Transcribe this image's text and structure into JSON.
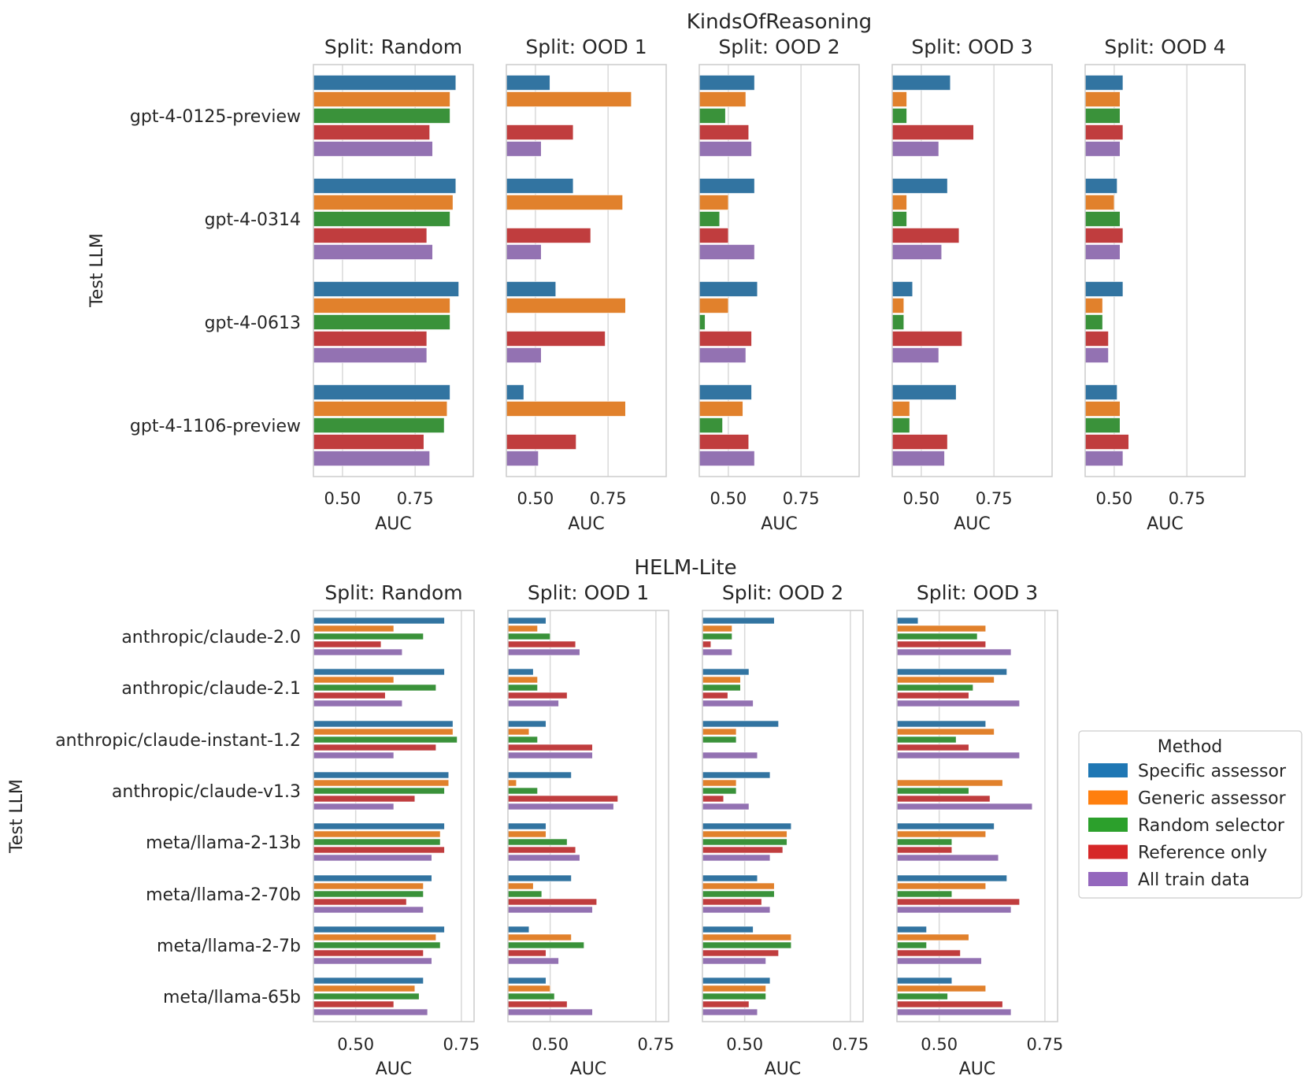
{
  "chart_data": [
    {
      "type": "bar",
      "orientation": "horizontal",
      "title": "KindsOfReasoning",
      "ylabel": "Test LLM",
      "xlabel": "AUC",
      "xticks": [
        0.5,
        0.75
      ],
      "xtick_labels": [
        "0.50",
        "0.75"
      ],
      "xlim": [
        0.4,
        0.95
      ],
      "grid": true,
      "categories": [
        "gpt-4-0125-preview",
        "gpt-4-0314",
        "gpt-4-0613",
        "gpt-4-1106-preview"
      ],
      "series_names": [
        "Specific assessor",
        "Generic assessor",
        "Random selector",
        "Reference only",
        "All train data"
      ],
      "panels": [
        {
          "title": "Split: Random",
          "values": [
            [
              0.89,
              0.87,
              0.87,
              0.8,
              0.81
            ],
            [
              0.89,
              0.88,
              0.87,
              0.79,
              0.81
            ],
            [
              0.9,
              0.87,
              0.87,
              0.79,
              0.79
            ],
            [
              0.87,
              0.86,
              0.85,
              0.78,
              0.8
            ]
          ]
        },
        {
          "title": "Split: OOD 1",
          "values": [
            [
              0.55,
              0.83,
              null,
              0.63,
              0.52
            ],
            [
              0.63,
              0.8,
              null,
              0.69,
              0.52
            ],
            [
              0.57,
              0.81,
              null,
              0.74,
              0.52
            ],
            [
              0.46,
              0.81,
              null,
              0.64,
              0.51
            ]
          ]
        },
        {
          "title": "Split: OOD 2",
          "values": [
            [
              0.59,
              0.56,
              0.49,
              0.57,
              0.58
            ],
            [
              0.59,
              0.5,
              0.47,
              0.5,
              0.59
            ],
            [
              0.6,
              0.5,
              0.42,
              0.58,
              0.56
            ],
            [
              0.58,
              0.55,
              0.48,
              0.57,
              0.59
            ]
          ]
        },
        {
          "title": "Split: OOD 3",
          "values": [
            [
              0.6,
              0.45,
              0.45,
              0.68,
              0.56
            ],
            [
              0.59,
              0.45,
              0.45,
              0.63,
              0.57
            ],
            [
              0.47,
              0.44,
              0.44,
              0.64,
              0.56
            ],
            [
              0.62,
              0.46,
              0.46,
              0.59,
              0.58
            ]
          ]
        },
        {
          "title": "Split: OOD 4",
          "values": [
            [
              0.53,
              0.52,
              0.52,
              0.53,
              0.52
            ],
            [
              0.51,
              0.5,
              0.52,
              0.53,
              0.52
            ],
            [
              0.53,
              0.46,
              0.46,
              0.48,
              0.48
            ],
            [
              0.51,
              0.52,
              0.52,
              0.55,
              0.53
            ]
          ]
        }
      ]
    },
    {
      "type": "bar",
      "orientation": "horizontal",
      "title": "HELM-Lite",
      "ylabel": "Test LLM",
      "xlabel": "AUC",
      "xticks": [
        0.5,
        0.75
      ],
      "xtick_labels": [
        "0.50",
        "0.75"
      ],
      "xlim": [
        0.4,
        0.78
      ],
      "grid": true,
      "categories": [
        "anthropic/claude-2.0",
        "anthropic/claude-2.1",
        "anthropic/claude-instant-1.2",
        "anthropic/claude-v1.3",
        "meta/llama-2-13b",
        "meta/llama-2-70b",
        "meta/llama-2-7b",
        "meta/llama-65b"
      ],
      "series_names": [
        "Specific assessor",
        "Generic assessor",
        "Random selector",
        "Reference only",
        "All train data"
      ],
      "panels": [
        {
          "title": "Split: Random",
          "values": [
            [
              0.71,
              0.59,
              0.66,
              0.56,
              0.61
            ],
            [
              0.71,
              0.59,
              0.69,
              0.57,
              0.61
            ],
            [
              0.73,
              0.73,
              0.74,
              0.69,
              0.59
            ],
            [
              0.72,
              0.72,
              0.71,
              0.64,
              0.59
            ],
            [
              0.71,
              0.7,
              0.7,
              0.71,
              0.68
            ],
            [
              0.68,
              0.66,
              0.66,
              0.62,
              0.66
            ],
            [
              0.71,
              0.69,
              0.7,
              0.66,
              0.68
            ],
            [
              0.66,
              0.64,
              0.65,
              0.59,
              0.67
            ]
          ]
        },
        {
          "title": "Split: OOD 1",
          "values": [
            [
              0.49,
              0.47,
              0.5,
              0.56,
              0.57
            ],
            [
              0.46,
              0.47,
              0.47,
              0.54,
              0.52
            ],
            [
              0.49,
              0.45,
              0.47,
              0.6,
              0.6
            ],
            [
              0.55,
              0.42,
              0.47,
              0.66,
              0.65
            ],
            [
              0.49,
              0.49,
              0.54,
              0.56,
              0.57
            ],
            [
              0.55,
              0.46,
              0.48,
              0.61,
              0.6
            ],
            [
              0.45,
              0.55,
              0.58,
              0.49,
              0.52
            ],
            [
              0.49,
              0.5,
              0.51,
              0.54,
              0.6
            ]
          ]
        },
        {
          "title": "Split: OOD 2",
          "values": [
            [
              0.57,
              0.47,
              0.47,
              0.42,
              0.47
            ],
            [
              0.51,
              0.49,
              0.49,
              0.46,
              0.52
            ],
            [
              0.58,
              0.48,
              0.48,
              null,
              0.53
            ],
            [
              0.56,
              0.48,
              0.48,
              0.45,
              0.51
            ],
            [
              0.61,
              0.6,
              0.6,
              0.59,
              0.56
            ],
            [
              0.53,
              0.57,
              0.57,
              0.54,
              0.56
            ],
            [
              0.52,
              0.61,
              0.61,
              0.58,
              0.55
            ],
            [
              0.56,
              0.55,
              0.55,
              0.51,
              0.53
            ]
          ]
        },
        {
          "title": "Split: OOD 3",
          "values": [
            [
              0.45,
              0.61,
              0.59,
              0.61,
              0.67
            ],
            [
              0.66,
              0.63,
              0.58,
              0.57,
              0.69
            ],
            [
              0.61,
              0.63,
              0.54,
              0.57,
              0.69
            ],
            [
              null,
              0.65,
              0.57,
              0.62,
              0.72
            ],
            [
              0.63,
              0.61,
              0.53,
              0.53,
              0.64
            ],
            [
              0.66,
              0.61,
              0.53,
              0.69,
              0.67
            ],
            [
              0.47,
              0.57,
              0.47,
              0.55,
              0.6
            ],
            [
              0.53,
              0.61,
              0.52,
              0.65,
              0.67
            ]
          ]
        }
      ]
    }
  ],
  "legend": {
    "title": "Method",
    "items": [
      "Specific assessor",
      "Generic assessor",
      "Random selector",
      "Reference only",
      "All train data"
    ]
  },
  "colors": {
    "bars": [
      "#3274a1",
      "#e1812c",
      "#3a923a",
      "#c03d3e",
      "#9372b2"
    ],
    "legend_swatches": [
      "#1f77b4",
      "#ff7f0e",
      "#2ca02c",
      "#d62728",
      "#9467bd"
    ]
  }
}
